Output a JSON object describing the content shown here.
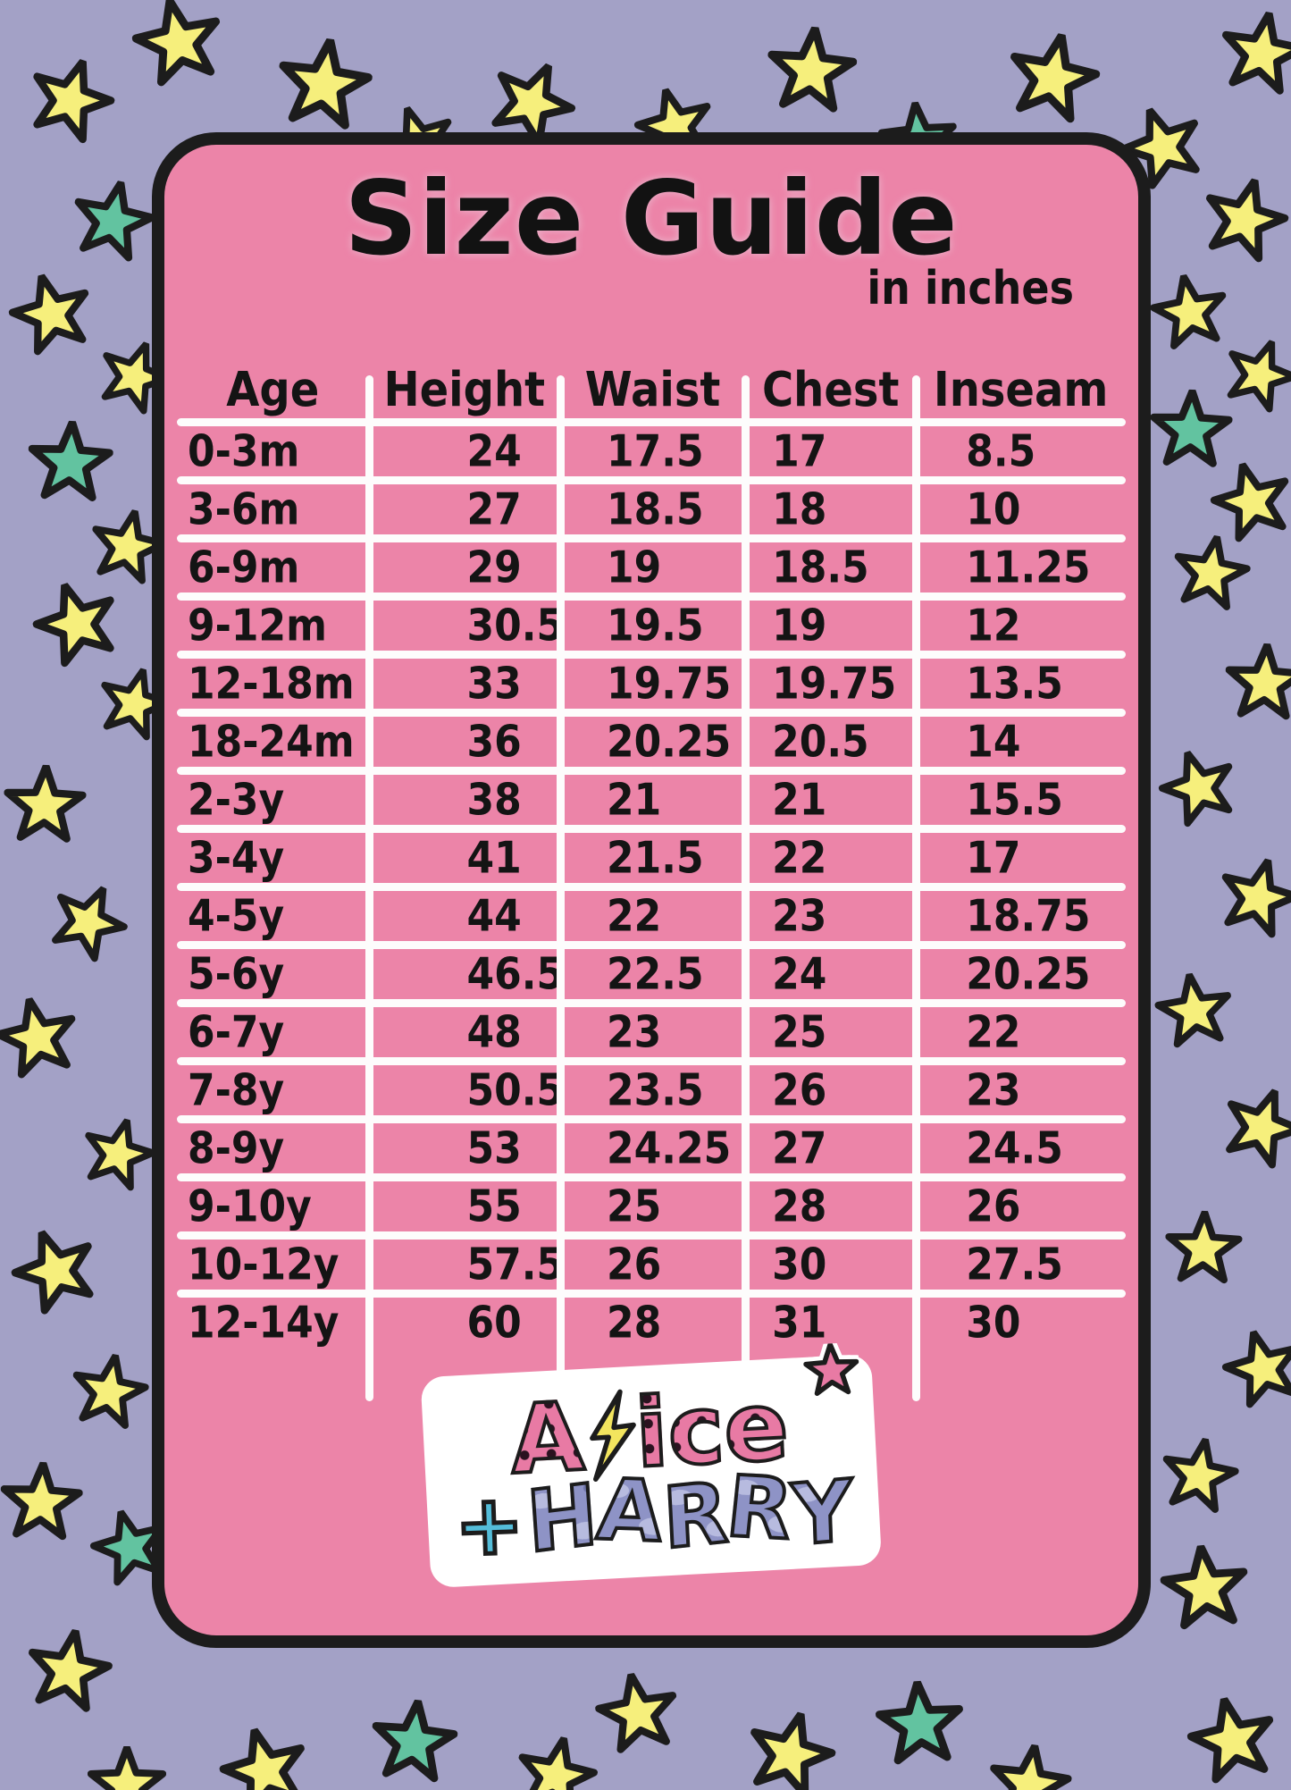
{
  "chart_data": {
    "type": "table",
    "title": "Size Guide",
    "subtitle": "in inches",
    "columns": [
      "Age",
      "Height",
      "Waist",
      "Chest",
      "Inseam"
    ],
    "rows": [
      [
        "0-3m",
        "24",
        "17.5",
        "17",
        "8.5"
      ],
      [
        "3-6m",
        "27",
        "18.5",
        "18",
        "10"
      ],
      [
        "6-9m",
        "29",
        "19",
        "18.5",
        "11.25"
      ],
      [
        "9-12m",
        "30.5",
        "19.5",
        "19",
        "12"
      ],
      [
        "12-18m",
        "33",
        "19.75",
        "19.75",
        "13.5"
      ],
      [
        "18-24m",
        "36",
        "20.25",
        "20.5",
        "14"
      ],
      [
        "2-3y",
        "38",
        "21",
        "21",
        "15.5"
      ],
      [
        "3-4y",
        "41",
        "21.5",
        "22",
        "17"
      ],
      [
        "4-5y",
        "44",
        "22",
        "23",
        "18.75"
      ],
      [
        "5-6y",
        "46.5",
        "22.5",
        "24",
        "20.25"
      ],
      [
        "6-7y",
        "48",
        "23",
        "25",
        "22"
      ],
      [
        "7-8y",
        "50.5",
        "23.5",
        "26",
        "23"
      ],
      [
        "8-9y",
        "53",
        "24.25",
        "27",
        "24.5"
      ],
      [
        "9-10y",
        "55",
        "25",
        "28",
        "26"
      ],
      [
        "10-12y",
        "57.5",
        "26",
        "30",
        "27.5"
      ],
      [
        "12-14y",
        "60",
        "28",
        "31",
        "30"
      ]
    ],
    "layout": {
      "grid": "white divider lines",
      "unit": "inches"
    }
  },
  "logo": {
    "line1": "Alice",
    "line1_prefix": "A",
    "line1_suffix": "ice",
    "plus": "+",
    "line2": "HARRY"
  },
  "colors": {
    "background": "#a3a1c6",
    "card_pink": "#ec84a8",
    "outline_black": "#1c1c1c",
    "divider_white": "#fdfcfc",
    "star_yellow": "#f6ef7c",
    "star_teal": "#62c3a0",
    "logo_pink": "#e87aa4",
    "logo_periwinkle": "#8e93c6",
    "logo_blue": "#54bdd9",
    "bolt_yellow": "#f3e55e"
  }
}
